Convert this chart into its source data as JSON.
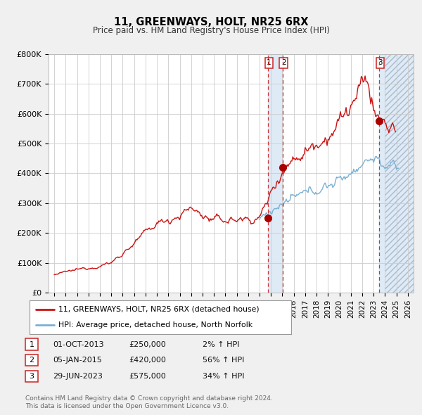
{
  "title": "11, GREENWAYS, HOLT, NR25 6RX",
  "subtitle": "Price paid vs. HM Land Registry's House Price Index (HPI)",
  "xlim": [
    1994.5,
    2026.5
  ],
  "ylim": [
    0,
    800000
  ],
  "yticks": [
    0,
    100000,
    200000,
    300000,
    400000,
    500000,
    600000,
    700000,
    800000
  ],
  "ytick_labels": [
    "£0",
    "£100K",
    "£200K",
    "£300K",
    "£400K",
    "£500K",
    "£600K",
    "£700K",
    "£800K"
  ],
  "xticks": [
    1995,
    1996,
    1997,
    1998,
    1999,
    2000,
    2001,
    2002,
    2003,
    2004,
    2005,
    2006,
    2007,
    2008,
    2009,
    2010,
    2011,
    2012,
    2013,
    2014,
    2015,
    2016,
    2017,
    2018,
    2019,
    2020,
    2021,
    2022,
    2023,
    2024,
    2025,
    2026
  ],
  "sale_dates": [
    2013.75,
    2015.02,
    2023.49
  ],
  "sale_prices": [
    250000,
    420000,
    575000
  ],
  "sale_labels": [
    "1",
    "2",
    "3"
  ],
  "hpi_color": "#7ab0d4",
  "price_color": "#cc1111",
  "dot_color": "#aa0000",
  "vline_color": "#cc3333",
  "shade_color": "#deeaf5",
  "hatch_color": "#c8d8e8",
  "legend_label_price": "11, GREENWAYS, HOLT, NR25 6RX (detached house)",
  "legend_label_hpi": "HPI: Average price, detached house, North Norfolk",
  "table_rows": [
    [
      "1",
      "01-OCT-2013",
      "£250,000",
      "2% ↑ HPI"
    ],
    [
      "2",
      "05-JAN-2015",
      "£420,000",
      "56% ↑ HPI"
    ],
    [
      "3",
      "29-JUN-2023",
      "£575,000",
      "34% ↑ HPI"
    ]
  ],
  "footnote": "Contains HM Land Registry data © Crown copyright and database right 2024.\nThis data is licensed under the Open Government Licence v3.0.",
  "bg_color": "#f0f0f0",
  "plot_bg_color": "#ffffff"
}
